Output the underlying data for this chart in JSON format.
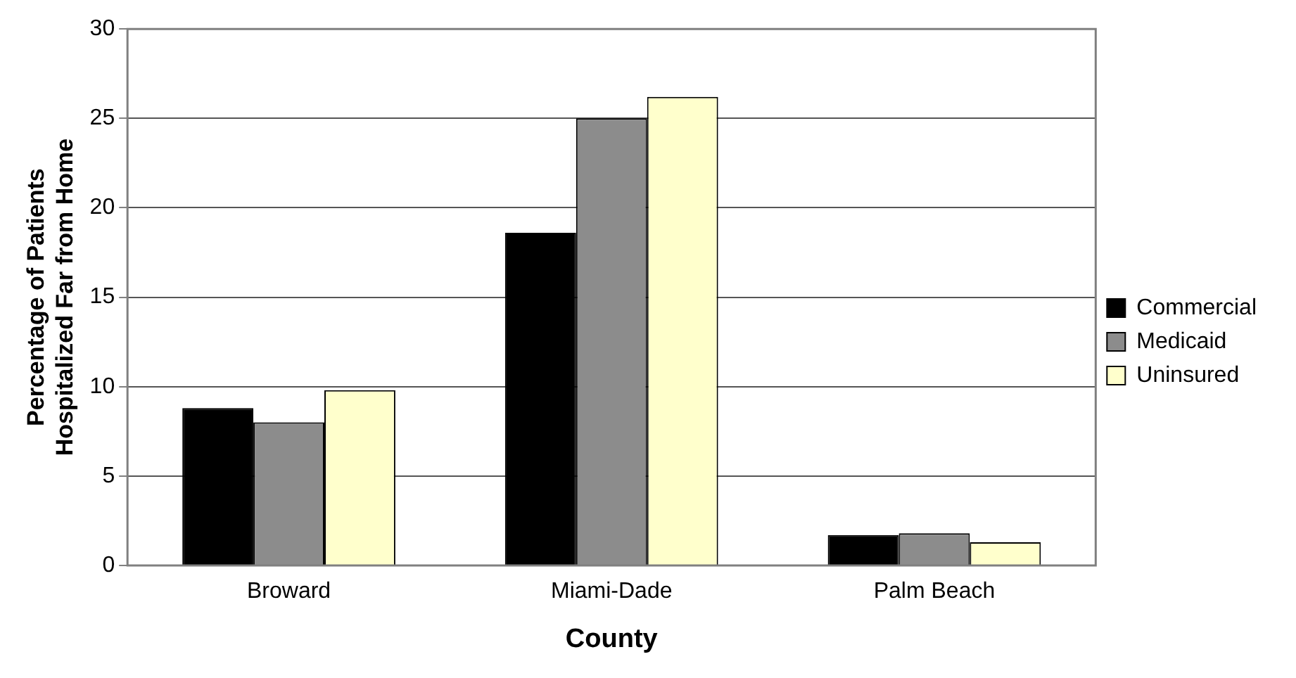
{
  "chart_data": {
    "type": "bar",
    "xlabel": "County",
    "ylabel": "Percentage of Patients Hospitalized Far from Home",
    "categories": [
      "Broward",
      "Miami-Dade",
      "Palm Beach"
    ],
    "series": [
      {
        "name": "Commercial",
        "color": "#000000",
        "values": [
          8.8,
          18.6,
          1.7
        ]
      },
      {
        "name": "Medicaid",
        "color": "#8c8c8c",
        "values": [
          8.0,
          25.0,
          1.8
        ]
      },
      {
        "name": "Uninsured",
        "color": "#ffffcc",
        "values": [
          9.8,
          26.2,
          1.3
        ]
      }
    ],
    "ylim": [
      0,
      30
    ],
    "yticks": [
      0,
      5,
      10,
      15,
      20,
      25,
      30
    ],
    "grid": "y",
    "legend": "right"
  }
}
